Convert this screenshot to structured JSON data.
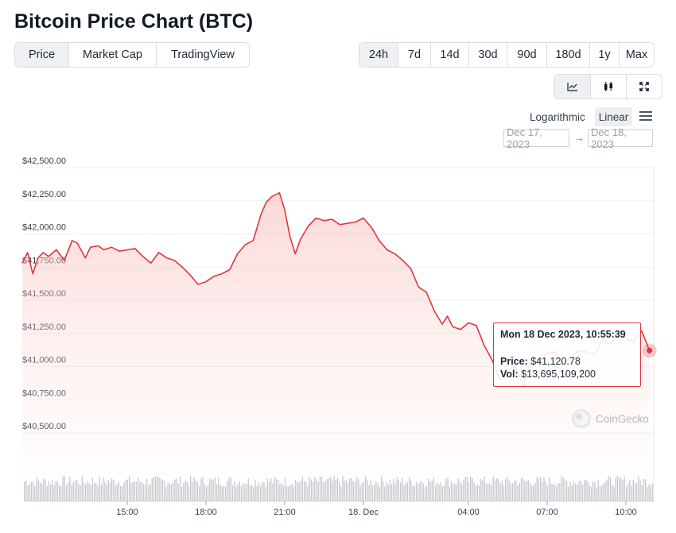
{
  "title": "Bitcoin Price Chart (BTC)",
  "tabs": [
    {
      "label": "Price",
      "active": true
    },
    {
      "label": "Market Cap",
      "active": false
    },
    {
      "label": "TradingView",
      "active": false
    }
  ],
  "ranges": [
    {
      "label": "24h",
      "active": true
    },
    {
      "label": "7d",
      "active": false
    },
    {
      "label": "14d",
      "active": false
    },
    {
      "label": "30d",
      "active": false
    },
    {
      "label": "90d",
      "active": false
    },
    {
      "label": "180d",
      "active": false
    },
    {
      "label": "1y",
      "active": false
    },
    {
      "label": "Max",
      "active": false
    }
  ],
  "views": [
    {
      "icon": "line-chart-icon"
    },
    {
      "icon": "candlestick-icon"
    },
    {
      "icon": "fullscreen-icon"
    }
  ],
  "scale": {
    "log_label": "Logarithmic",
    "linear_label": "Linear",
    "active": "Linear",
    "menu_icon": "hamburger-menu-icon"
  },
  "date_range": {
    "from": "Dec 17, 2023",
    "arrow": "→",
    "to": "Dec 18, 2023"
  },
  "tooltip": {
    "date": "Mon 18 Dec 2023, 10:55:39",
    "price_label": "Price:",
    "price_value": "$41,120.78",
    "vol_label": "Vol:",
    "vol_value": "$13,695,109,200"
  },
  "brand": {
    "name": "CoinGecko",
    "icon": "coingecko-logo"
  },
  "colors": {
    "line": "#e0363d",
    "fill_top": "#f9d1cf",
    "grid": "#eef0f2",
    "volume": "#c5c8cd",
    "accent": "#e0363d"
  },
  "chart_data": {
    "type": "area",
    "title": "",
    "xlabel": "",
    "ylabel": "",
    "ylim": [
      40500,
      42500
    ],
    "yticks": [
      "$40,500.00",
      "$40,750.00",
      "$41,000.00",
      "$41,250.00",
      "$41,500.00",
      "$41,750.00",
      "$42,000.00",
      "$42,250.00",
      "$42,500.00"
    ],
    "ytick_values": [
      40500,
      40750,
      41000,
      41250,
      41500,
      41750,
      42000,
      42250,
      42500
    ],
    "xticks": [
      "15:00",
      "18:00",
      "21:00",
      "18. Dec",
      "04:00",
      "07:00",
      "10:00"
    ],
    "xtick_hours": [
      15,
      18,
      21,
      24,
      28,
      31,
      34
    ],
    "x_range_hours": [
      11,
      35.0
    ],
    "grid": true,
    "series": [
      {
        "name": "",
        "x_hours": [
          11.0,
          11.2,
          11.4,
          11.6,
          11.8,
          12.0,
          12.3,
          12.6,
          12.9,
          13.1,
          13.4,
          13.6,
          13.9,
          14.1,
          14.4,
          14.7,
          15.0,
          15.3,
          15.6,
          15.9,
          16.2,
          16.5,
          16.8,
          17.1,
          17.4,
          17.7,
          18.0,
          18.3,
          18.6,
          18.9,
          19.2,
          19.5,
          19.8,
          20.1,
          20.3,
          20.5,
          20.8,
          21.0,
          21.2,
          21.4,
          21.6,
          21.9,
          22.2,
          22.5,
          22.8,
          23.1,
          23.4,
          23.7,
          24.0,
          24.3,
          24.6,
          24.9,
          25.2,
          25.5,
          25.8,
          26.1,
          26.4,
          26.7,
          27.0,
          27.2,
          27.4,
          27.7,
          28.0,
          28.3,
          28.6,
          28.9,
          29.2,
          29.5,
          29.8,
          30.1,
          30.4,
          30.7,
          31.0,
          31.3,
          31.6,
          31.9,
          32.2,
          32.5,
          32.8,
          33.1,
          33.4,
          33.7,
          34.0,
          34.3,
          34.6,
          34.9
        ],
        "values": [
          41780,
          41860,
          41700,
          41820,
          41860,
          41830,
          41880,
          41800,
          41950,
          41930,
          41820,
          41900,
          41910,
          41880,
          41900,
          41870,
          41880,
          41890,
          41830,
          41780,
          41860,
          41820,
          41800,
          41750,
          41690,
          41620,
          41640,
          41680,
          41700,
          41730,
          41850,
          41920,
          41950,
          42150,
          42240,
          42280,
          42310,
          42180,
          41980,
          41850,
          41960,
          42060,
          42120,
          42100,
          42110,
          42070,
          42080,
          42090,
          42120,
          42050,
          41950,
          41880,
          41850,
          41800,
          41740,
          41600,
          41560,
          41420,
          41320,
          41380,
          41300,
          41280,
          41330,
          41310,
          41160,
          41050,
          40900,
          40980,
          41000,
          40850,
          41070,
          41050,
          41100,
          41110,
          41020,
          41070,
          41120,
          41110,
          41090,
          41200,
          41170,
          41240,
          41210,
          41190,
          41270,
          41120
        ]
      }
    ],
    "highlight": {
      "x_hours": 34.9,
      "value": 41120.78
    }
  }
}
